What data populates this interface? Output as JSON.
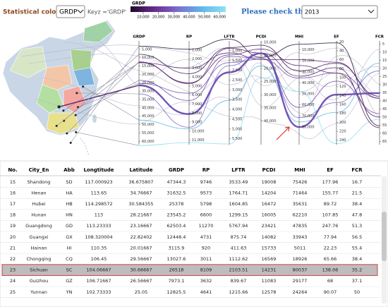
{
  "controls": {
    "coloring_label": "Statistical coloring:",
    "coloring_value": "GRDP",
    "key_text": "Keyz ='GRDP'",
    "year_label": "Please check the year:",
    "year_value": "2013"
  },
  "legend": {
    "title": "GRDP",
    "lim": [
      1700,
      64000
    ],
    "colors": [
      "#1c0a2c",
      "#6a2c8c",
      "#7a6fd0",
      "#5fb8e8",
      "#8fe0f4"
    ],
    "ticks": [
      {
        "value": 10000,
        "label": "10,000"
      },
      {
        "value": 20000,
        "label": "20,000"
      },
      {
        "value": 30000,
        "label": "30,000"
      },
      {
        "value": 40000,
        "label": "40,000"
      },
      {
        "value": 50000,
        "label": "50,000"
      },
      {
        "value": 60000,
        "label": "60,000"
      }
    ]
  },
  "map": {
    "lonlim": [
      73,
      135
    ],
    "latlim": [
      18,
      54
    ]
  },
  "axes": [
    {
      "name": "GRDP",
      "lim": [
        0,
        62000
      ],
      "ticks": [
        {
          "value": 5000,
          "label": "5,000"
        },
        {
          "value": 10000,
          "label": "10,000"
        },
        {
          "value": 15000,
          "label": "15,000"
        },
        {
          "value": 20000,
          "label": "20,000"
        },
        {
          "value": 25000,
          "label": "25,000"
        },
        {
          "value": 30000,
          "label": "30,000"
        },
        {
          "value": 35000,
          "label": "35,000"
        },
        {
          "value": 40000,
          "label": "40,000"
        },
        {
          "value": 45000,
          "label": "45,000"
        },
        {
          "value": 50000,
          "label": "50,000"
        },
        {
          "value": 55000,
          "label": "55,000"
        },
        {
          "value": 60000,
          "label": "60,000"
        }
      ]
    },
    {
      "name": "RP",
      "lim": [
        0,
        11500
      ],
      "ticks": [
        {
          "value": 1000,
          "label": "1,000"
        },
        {
          "value": 2000,
          "label": "2,000"
        },
        {
          "value": 3000,
          "label": "3,000"
        },
        {
          "value": 4000,
          "label": "4,000"
        },
        {
          "value": 5000,
          "label": "5,000"
        },
        {
          "value": 6000,
          "label": "6,000"
        },
        {
          "value": 7000,
          "label": "7,000"
        },
        {
          "value": 8000,
          "label": "8,000"
        },
        {
          "value": 9000,
          "label": "9,000"
        },
        {
          "value": 10000,
          "label": "10,000"
        },
        {
          "value": 11000,
          "label": "11,000"
        }
      ]
    },
    {
      "name": "LFTR",
      "lim": [
        500,
        5800
      ],
      "ticks": [
        {
          "value": 1000,
          "label": "1,000"
        },
        {
          "value": 1500,
          "label": "1,500"
        },
        {
          "value": 2000,
          "label": "2,000"
        },
        {
          "value": 2500,
          "label": "2,500"
        },
        {
          "value": 3000,
          "label": "3,000"
        },
        {
          "value": 3500,
          "label": "3,500"
        },
        {
          "value": 4000,
          "label": "4,000"
        },
        {
          "value": 4500,
          "label": "4,500"
        },
        {
          "value": 5000,
          "label": "5,000"
        },
        {
          "value": 5500,
          "label": "5,500"
        }
      ]
    },
    {
      "name": "PCDI",
      "lim": [
        9500,
        49000
      ],
      "ticks": [
        {
          "value": 10000,
          "label": "10,000"
        },
        {
          "value": 15000,
          "label": "15,000"
        },
        {
          "value": 20000,
          "label": "20,000"
        },
        {
          "value": 25000,
          "label": "25,000"
        },
        {
          "value": 30000,
          "label": "30,000"
        },
        {
          "value": 35000,
          "label": "35,000"
        },
        {
          "value": 40000,
          "label": "40,000"
        }
      ]
    },
    {
      "name": "MHI",
      "lim": [
        2000,
        96000
      ],
      "ticks": [
        {
          "value": 10000,
          "label": "10,000"
        },
        {
          "value": 20000,
          "label": "20,000"
        },
        {
          "value": 30000,
          "label": "30,000"
        },
        {
          "value": 40000,
          "label": "40,000"
        },
        {
          "value": 50000,
          "label": "50,000"
        },
        {
          "value": 60000,
          "label": "60,000"
        },
        {
          "value": 70000,
          "label": "70,000"
        },
        {
          "value": 80000,
          "label": "80,000"
        }
      ]
    },
    {
      "name": "EF",
      "lim": [
        18,
        250
      ],
      "ticks": [
        20,
        40,
        60,
        80,
        100,
        120,
        140,
        160,
        180,
        200,
        220,
        240
      ]
    },
    {
      "name": "FCR",
      "lim": [
        3,
        67
      ],
      "ticks": [
        5,
        10,
        15,
        20,
        25,
        30,
        35,
        40,
        45,
        50,
        55,
        60,
        65
      ]
    }
  ],
  "table": {
    "highlighted_row": 8,
    "columns": [
      "No.",
      "City_En",
      "Abb",
      "Longtitude",
      "Latitude",
      "GRDP",
      "RP",
      "LFTR",
      "PCDI",
      "MHI",
      "EF",
      "FCR"
    ],
    "rows": [
      [
        15,
        "Shandong",
        "SD",
        117.000923,
        36.675807,
        47344.3,
        9746,
        3533.49,
        19008,
        75426,
        177.96,
        16.7
      ],
      [
        16,
        "Henan",
        "HA",
        113.65,
        34.76667,
        31632.5,
        9573,
        1764.71,
        14204,
        71464,
        155.77,
        21.5
      ],
      [
        17,
        "Hubei",
        "HB",
        114.298572,
        30.584355,
        25378,
        5798,
        1604.85,
        16472,
        35631,
        89.72,
        38.4
      ],
      [
        18,
        "Hunan",
        "HN",
        113,
        28.21667,
        23545.2,
        6600,
        1299.15,
        16005,
        62210,
        107.85,
        47.8
      ],
      [
        19,
        "Guangdong",
        "GD",
        113.23333,
        23.16667,
        62503.4,
        11270,
        5767.94,
        23421,
        47835,
        247.76,
        51.3
      ],
      [
        20,
        "Guangxi",
        "GX",
        108.320004,
        22.82402,
        12448.4,
        4731,
        875.74,
        14082,
        33943,
        77.94,
        56.5
      ],
      [
        21,
        "Hainan",
        "HI",
        110.35,
        20.01667,
        3115.9,
        920,
        411.63,
        15733,
        5011,
        22.23,
        55.4
      ],
      [
        22,
        "Chongqing",
        "CQ",
        106.45,
        29.56667,
        13027.6,
        3011,
        1112.62,
        16569,
        18926,
        65.66,
        38.4
      ],
      [
        23,
        "Sichuan",
        "SC",
        104.06667,
        30.66667,
        26518,
        8109,
        2103.51,
        14231,
        80037,
        138.06,
        35.2
      ],
      [
        24,
        "Guizhou",
        "GZ",
        106.71667,
        26.56667,
        7973.1,
        3632,
        839.67,
        11083,
        29177,
        68,
        37.1
      ],
      [
        25,
        "Yunnan",
        "YN",
        102.73333,
        25.05,
        12825.5,
        4641,
        1215.66,
        12578,
        24264,
        90.07,
        50
      ]
    ]
  }
}
